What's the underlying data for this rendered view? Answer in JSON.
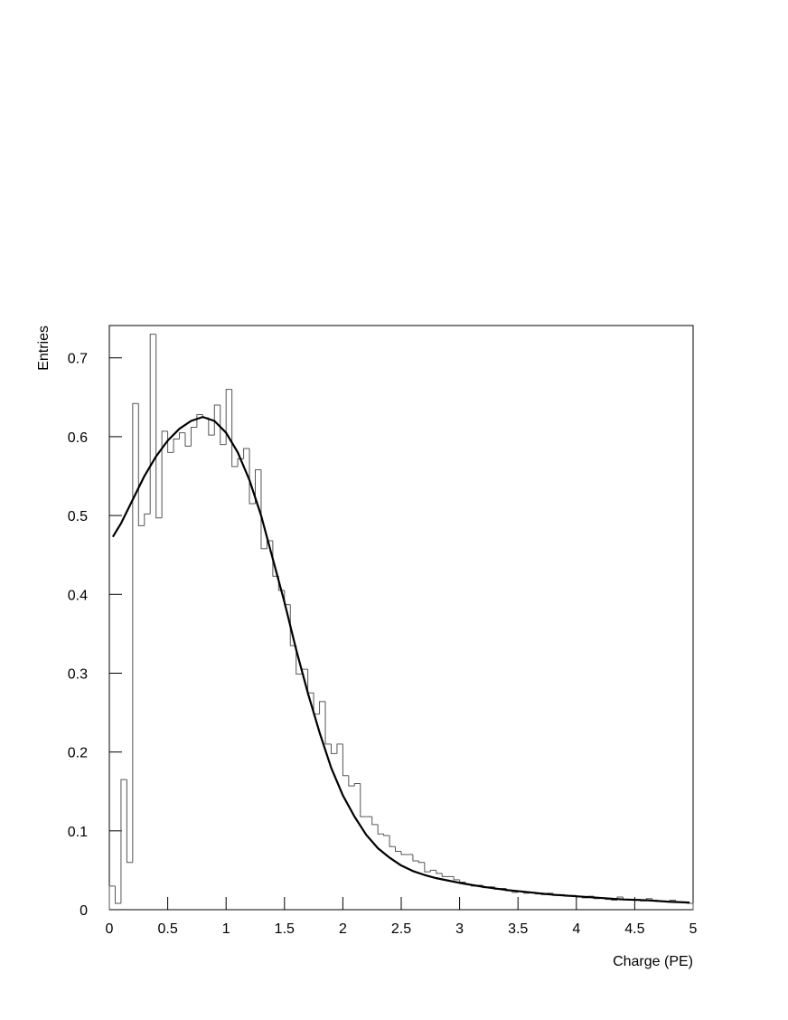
{
  "chart_data": {
    "type": "histogram",
    "x_label": "Charge (PE)",
    "y_label": "Entries",
    "xlim": [
      0,
      5
    ],
    "ylim": [
      0,
      0.741
    ],
    "xticks": [
      0,
      0.5,
      1,
      1.5,
      2,
      2.5,
      3,
      3.5,
      4,
      4.5,
      5
    ],
    "yticks": [
      0,
      0.1,
      0.2,
      0.3,
      0.4,
      0.5,
      0.6,
      0.7
    ],
    "color": "#555555",
    "bins": [
      0,
      0.05,
      0.1,
      0.15,
      0.2,
      0.25,
      0.3,
      0.35,
      0.4,
      0.45,
      0.5,
      0.55,
      0.6,
      0.65,
      0.7,
      0.75,
      0.8,
      0.85,
      0.9,
      0.95,
      1,
      1.05,
      1.1,
      1.15,
      1.2,
      1.25,
      1.3,
      1.35,
      1.4,
      1.45,
      1.5,
      1.55,
      1.6,
      1.65,
      1.7,
      1.75,
      1.8,
      1.85,
      1.9,
      1.95,
      2,
      2.05,
      2.1,
      2.15,
      2.2,
      2.25,
      2.3,
      2.35,
      2.4,
      2.45,
      2.5,
      2.55,
      2.6,
      2.65,
      2.7,
      2.75,
      2.8,
      2.85,
      2.9,
      2.95,
      3,
      3.05,
      3.1,
      3.15,
      3.2,
      3.25,
      3.3,
      3.35,
      3.4,
      3.45,
      3.5,
      3.55,
      3.6,
      3.65,
      3.7,
      3.75,
      3.8,
      3.85,
      3.9,
      3.95,
      4,
      4.05,
      4.1,
      4.15,
      4.2,
      4.25,
      4.3,
      4.35,
      4.4,
      4.45,
      4.5,
      4.55,
      4.6,
      4.65,
      4.7,
      4.75,
      4.8,
      4.85,
      4.9,
      4.95,
      5
    ],
    "values": [
      0.03,
      0.008,
      0.165,
      0.06,
      0.642,
      0.487,
      0.502,
      0.73,
      0.497,
      0.607,
      0.58,
      0.597,
      0.605,
      0.588,
      0.612,
      0.628,
      0.624,
      0.602,
      0.64,
      0.59,
      0.66,
      0.562,
      0.572,
      0.585,
      0.515,
      0.558,
      0.458,
      0.468,
      0.423,
      0.405,
      0.387,
      0.335,
      0.299,
      0.305,
      0.275,
      0.248,
      0.264,
      0.21,
      0.198,
      0.21,
      0.17,
      0.157,
      0.16,
      0.118,
      0.118,
      0.108,
      0.096,
      0.094,
      0.08,
      0.074,
      0.07,
      0.07,
      0.062,
      0.06,
      0.048,
      0.05,
      0.046,
      0.042,
      0.042,
      0.038,
      0.035,
      0.032,
      0.03,
      0.031,
      0.028,
      0.029,
      0.026,
      0.027,
      0.024,
      0.022,
      0.023,
      0.021,
      0.022,
      0.02,
      0.019,
      0.021,
      0.018,
      0.019,
      0.017,
      0.018,
      0.016,
      0.015,
      0.017,
      0.014,
      0.015,
      0.013,
      0.012,
      0.016,
      0.013,
      0.012,
      0.013,
      0.011,
      0.014,
      0.012,
      0.011,
      0.01,
      0.012,
      0.01,
      0.009,
      0.008
    ],
    "fit": {
      "type": "line",
      "color": "#000000",
      "x": [
        0.03,
        0.1,
        0.2,
        0.3,
        0.4,
        0.5,
        0.6,
        0.7,
        0.8,
        0.9,
        1,
        1.1,
        1.2,
        1.3,
        1.4,
        1.5,
        1.6,
        1.7,
        1.8,
        1.9,
        2,
        2.1,
        2.2,
        2.3,
        2.4,
        2.5,
        2.6,
        2.7,
        2.8,
        2.9,
        3,
        3.2,
        3.4,
        3.6,
        3.8,
        4,
        4.2,
        4.4,
        4.6,
        4.8,
        4.97
      ],
      "values": [
        0.473,
        0.49,
        0.52,
        0.55,
        0.575,
        0.595,
        0.61,
        0.62,
        0.625,
        0.62,
        0.605,
        0.58,
        0.545,
        0.5,
        0.445,
        0.39,
        0.33,
        0.275,
        0.225,
        0.18,
        0.145,
        0.118,
        0.095,
        0.078,
        0.066,
        0.056,
        0.049,
        0.044,
        0.04,
        0.037,
        0.034,
        0.029,
        0.025,
        0.022,
        0.019,
        0.017,
        0.015,
        0.013,
        0.012,
        0.01,
        0.009
      ]
    }
  }
}
